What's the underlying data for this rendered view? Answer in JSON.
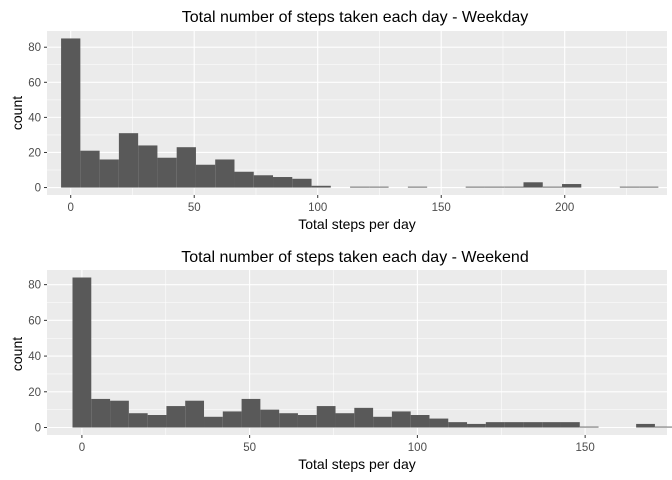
{
  "chart_data": [
    {
      "type": "bar",
      "title": "Total number of steps taken each day - Weekday",
      "xlabel": "Total steps per day",
      "ylabel": "count",
      "xlim": [
        -9.6,
        241.4
      ],
      "ylim": [
        -4.25,
        89.25
      ],
      "xticks": [
        0,
        50,
        100,
        150,
        200
      ],
      "yticks": [
        0,
        20,
        40,
        60,
        80
      ],
      "bin_width": 7.8,
      "bin_start": -3.9,
      "values": [
        85,
        21,
        16,
        31,
        24,
        17,
        23,
        13,
        16,
        9,
        7,
        6,
        5,
        1,
        0,
        0.5,
        0.5,
        0,
        0.5,
        0,
        0,
        0.5,
        0.5,
        0.5,
        3,
        0.5,
        2,
        0,
        0,
        0.5,
        0.5
      ],
      "grid": true,
      "panel_background": "#ebebeb",
      "bar_color": "#595959",
      "grid_color": "#ffffff"
    },
    {
      "type": "bar",
      "title": "Total number of steps taken each day - Weekend",
      "xlabel": "Total steps per day",
      "ylabel": "count",
      "xlim": [
        -10.4,
        174.4
      ],
      "ylim": [
        -4.2,
        88.2
      ],
      "xticks": [
        0,
        50,
        100,
        150
      ],
      "yticks": [
        0,
        20,
        40,
        60,
        80
      ],
      "bin_width": 5.6,
      "bin_start": -2.8,
      "values": [
        84,
        16,
        15,
        8,
        7,
        12,
        15,
        6,
        9,
        16,
        10,
        8,
        7,
        12,
        8,
        11,
        6,
        9,
        7,
        5,
        3,
        2,
        3,
        3,
        3,
        3,
        3,
        0.5,
        0,
        0,
        2,
        0.5
      ],
      "grid": true,
      "panel_background": "#ebebeb",
      "bar_color": "#595959",
      "grid_color": "#ffffff"
    }
  ]
}
